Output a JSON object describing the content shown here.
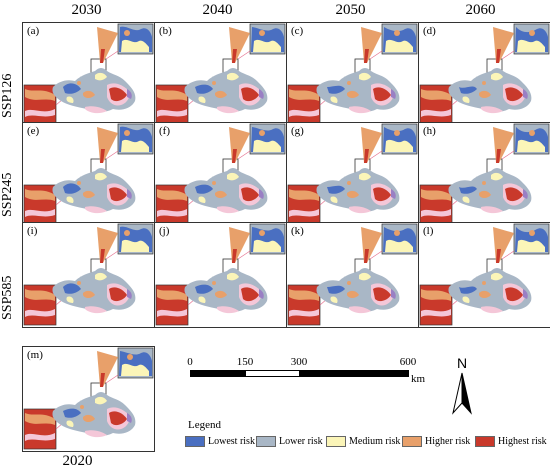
{
  "columns": [
    "2030",
    "2040",
    "2050",
    "2060"
  ],
  "rows": [
    "SSP126",
    "SSP245",
    "SSP585"
  ],
  "panels": [
    "(a)",
    "(b)",
    "(c)",
    "(d)",
    "(e)",
    "(f)",
    "(g)",
    "(h)",
    "(i)",
    "(j)",
    "(k)",
    "(l)"
  ],
  "base_panel": {
    "label": "(m)",
    "year": "2020"
  },
  "scale_bar": {
    "ticks": [
      "0",
      "150",
      "300",
      "600"
    ],
    "unit": "km"
  },
  "north": "N",
  "legend": {
    "title": "Legend",
    "items": [
      {
        "label": "Lowest risk",
        "color": "#4a6fc1"
      },
      {
        "label": "Lower risk",
        "color": "#a9b7c6"
      },
      {
        "label": "Medium risk",
        "color": "#fbf5b8"
      },
      {
        "label": "Higher risk",
        "color": "#e8a06a"
      },
      {
        "label": "Highest risk",
        "color": "#c9392b"
      }
    ]
  },
  "colors": {
    "lowest": "#4a6fc1",
    "lower": "#a9b7c6",
    "medium": "#fbf5b8",
    "higher": "#e8a06a",
    "highest": "#c9392b",
    "pink": "#f4c7d8",
    "purple": "#9a7fc4"
  }
}
